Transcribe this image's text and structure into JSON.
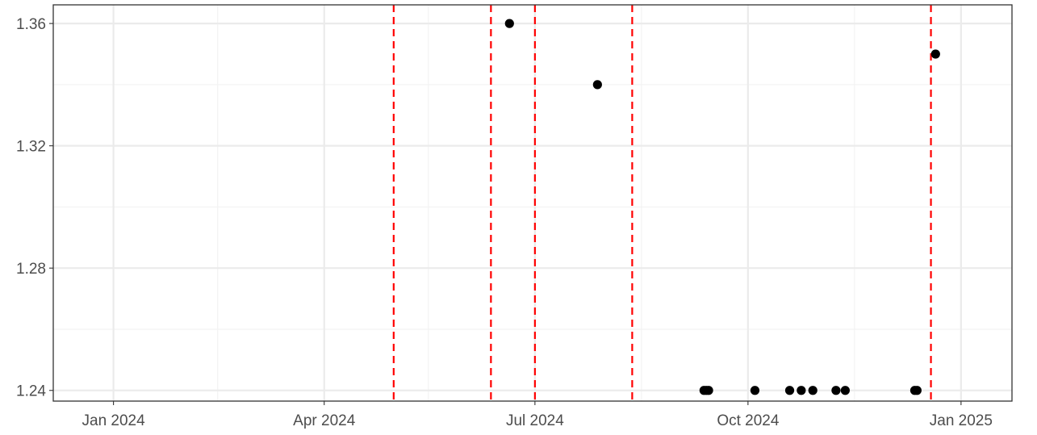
{
  "chart_data": {
    "type": "scatter",
    "title": "",
    "xlabel": "",
    "ylabel": "",
    "x_axis": {
      "type": "date",
      "range": [
        "2023-12-06",
        "2025-01-23"
      ],
      "major_ticks": [
        "2024-01-01",
        "2024-04-01",
        "2024-07-01",
        "2024-10-01",
        "2025-01-01"
      ],
      "minor_ticks": [
        "2024-02-15",
        "2024-05-16",
        "2024-08-16",
        "2024-11-16"
      ],
      "tick_labels": [
        "Jan 2024",
        "Apr 2024",
        "Jul 2024",
        "Oct 2024",
        "Jan 2025"
      ]
    },
    "y_axis": {
      "range": [
        1.2365,
        1.3661
      ],
      "major_ticks": [
        1.24,
        1.28,
        1.32,
        1.36
      ],
      "minor_ticks": [
        1.26,
        1.3,
        1.34
      ],
      "tick_labels": [
        "1.24",
        "1.28",
        "1.32",
        "1.36"
      ]
    },
    "grid": true,
    "points": [
      {
        "x": "2024-06-20",
        "y": 1.36
      },
      {
        "x": "2024-07-28",
        "y": 1.34
      },
      {
        "x": "2024-09-12",
        "y": 1.24
      },
      {
        "x": "2024-09-13",
        "y": 1.24
      },
      {
        "x": "2024-09-14",
        "y": 1.24
      },
      {
        "x": "2024-10-04",
        "y": 1.24
      },
      {
        "x": "2024-10-19",
        "y": 1.24
      },
      {
        "x": "2024-10-24",
        "y": 1.24
      },
      {
        "x": "2024-10-29",
        "y": 1.24
      },
      {
        "x": "2024-11-08",
        "y": 1.24
      },
      {
        "x": "2024-11-12",
        "y": 1.24
      },
      {
        "x": "2024-12-12",
        "y": 1.24
      },
      {
        "x": "2024-12-13",
        "y": 1.24
      },
      {
        "x": "2024-12-21",
        "y": 1.35
      }
    ],
    "vlines": {
      "style": "dashed",
      "color": "#ff0000",
      "x": [
        "2024-05-01",
        "2024-06-12",
        "2024-07-01",
        "2024-08-12",
        "2024-12-19"
      ]
    },
    "point_color": "#000000"
  }
}
